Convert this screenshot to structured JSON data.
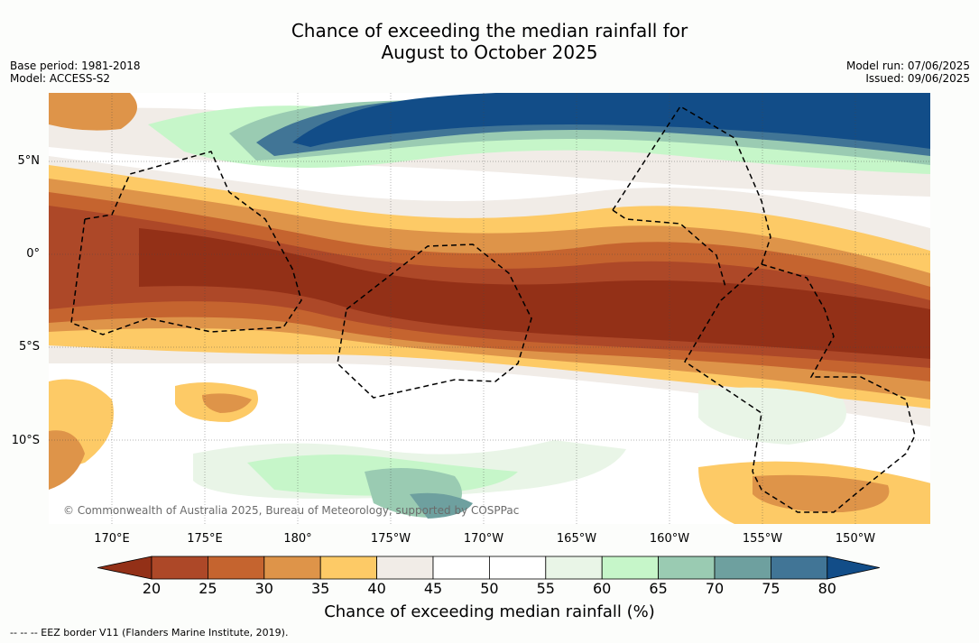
{
  "title_line1": "Chance of exceeding the median rainfall for",
  "title_line2": "August to October 2025",
  "base_period": "Base period: 1981-2018",
  "model": "Model: ACCESS-S2",
  "model_run": "Model run: 07/06/2025",
  "issued": "Issued: 09/06/2025",
  "copyright": "© Commonwealth of Australia 2025, Bureau of Meteorology, supported by COSPPac",
  "lat_labels": [
    "5°N",
    "0°",
    "5°S",
    "10°S"
  ],
  "lon_labels": [
    "170°E",
    "175°E",
    "180°",
    "175°W",
    "170°W",
    "165°W",
    "160°W",
    "155°W",
    "150°W"
  ],
  "colorbar": {
    "ticks": [
      "20",
      "25",
      "30",
      "35",
      "40",
      "45",
      "50",
      "55",
      "60",
      "65",
      "70",
      "75",
      "80"
    ],
    "colors": [
      "#933017",
      "#ad4828",
      "#c5642f",
      "#de9449",
      "#fdca66",
      "#f1ece7",
      "#ffffff",
      "#ffffff",
      "#e9f5e7",
      "#c6f6c9",
      "#9acbb2",
      "#6ea09f",
      "#417596",
      "#124d88"
    ],
    "label": "Chance of exceeding median rainfall (%)"
  },
  "footnote": "-- -- -- EEZ border V11 (Flanders Marine Institute, 2019)."
}
